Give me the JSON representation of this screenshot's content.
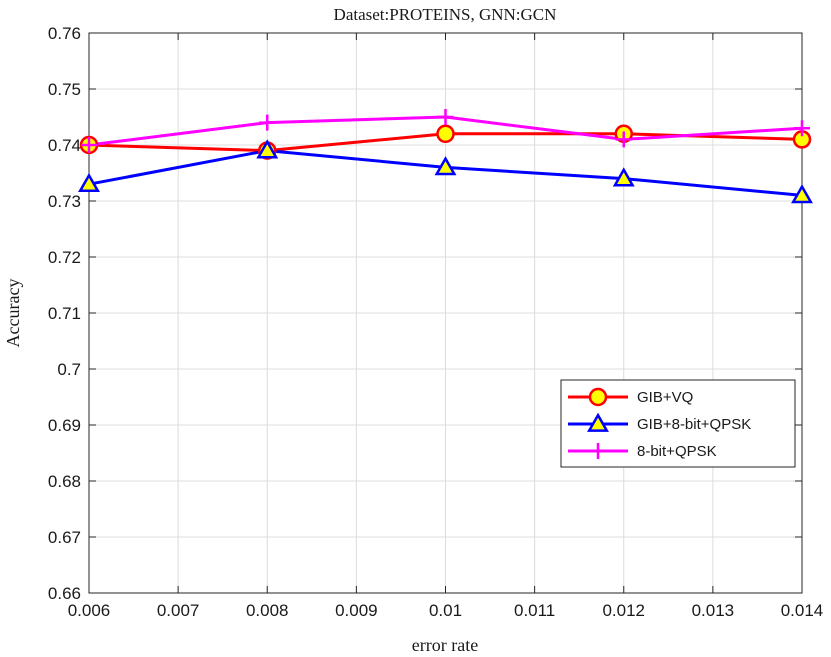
{
  "chart_data": {
    "type": "line",
    "title": "Dataset:PROTEINS, GNN:GCN",
    "xlabel": "error rate",
    "ylabel": "Accuracy",
    "xlim": [
      0.006,
      0.014
    ],
    "ylim": [
      0.66,
      0.76
    ],
    "xticks": [
      "0.006",
      "0.007",
      "0.008",
      "0.009",
      "0.01",
      "0.011",
      "0.012",
      "0.013",
      "0.014"
    ],
    "yticks": [
      "0.66",
      "0.67",
      "0.68",
      "0.69",
      "0.7",
      "0.71",
      "0.72",
      "0.73",
      "0.74",
      "0.75",
      "0.76"
    ],
    "grid": true,
    "legend_position": "lower-right",
    "x": [
      0.006,
      0.008,
      0.01,
      0.012,
      0.014
    ],
    "series": [
      {
        "name": "GIB+VQ",
        "values": [
          0.74,
          0.739,
          0.742,
          0.742,
          0.741
        ],
        "color": "#ff0000",
        "marker": "circle",
        "marker_fill": "#ffff00"
      },
      {
        "name": "GIB+8-bit+QPSK",
        "values": [
          0.733,
          0.739,
          0.736,
          0.734,
          0.731
        ],
        "color": "#0000ff",
        "marker": "triangle",
        "marker_fill": "#ffff00"
      },
      {
        "name": "8-bit+QPSK",
        "values": [
          0.74,
          0.744,
          0.745,
          0.741,
          0.743
        ],
        "color": "#ff00ff",
        "marker": "plus",
        "marker_fill": ""
      }
    ]
  }
}
